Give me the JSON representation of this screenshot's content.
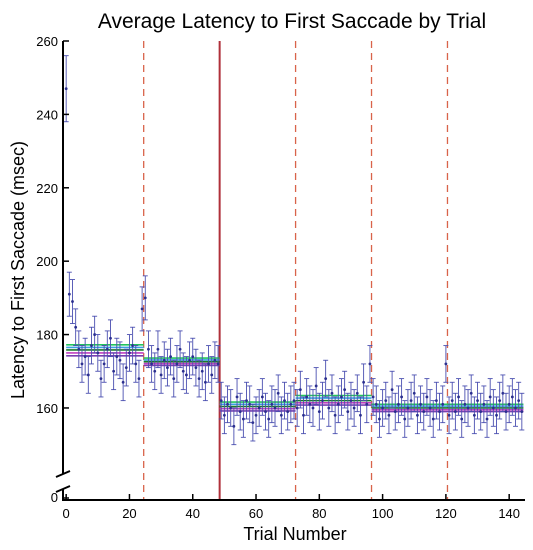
{
  "chart_data": {
    "type": "scatter",
    "title": "Average Latency to First Saccade by Trial",
    "xlabel": "Trial Number",
    "ylabel": "Latency to First Saccade (msec)",
    "xlim": [
      -1,
      145
    ],
    "ylim_main": [
      148,
      260
    ],
    "ylim_break": [
      0,
      0
    ],
    "axis_break": true,
    "grid": false,
    "x_ticks": [
      0,
      20,
      40,
      60,
      80,
      100,
      120,
      140
    ],
    "y_ticks": [
      160,
      180,
      200,
      220,
      240,
      260
    ],
    "y_ticks_below_break": [
      0
    ],
    "colors": {
      "points": "#2b2f8f",
      "errorbars": "#4a4fb0",
      "dashed_lines": "#d9634a",
      "solid_line": "#b0303a",
      "fit_lines": [
        "#22c55e",
        "#3aa0e0",
        "#1a7a2a",
        "#c040c0",
        "#7a3fb0"
      ]
    },
    "vertical_lines": [
      {
        "x": 24.5,
        "style": "dashed"
      },
      {
        "x": 48.5,
        "style": "solid"
      },
      {
        "x": 72.5,
        "style": "dashed"
      },
      {
        "x": 96.5,
        "style": "dashed"
      },
      {
        "x": 120.5,
        "style": "dashed"
      }
    ],
    "segment_means": [
      {
        "x_start": 0,
        "x_end": 24.5,
        "values": [
          177.2,
          176.5,
          175.8,
          175.0,
          174.2
        ]
      },
      {
        "x_start": 24.5,
        "x_end": 48.5,
        "values": [
          173.6,
          173.1,
          172.6,
          172.1,
          171.6
        ]
      },
      {
        "x_start": 48.5,
        "x_end": 72.5,
        "values": [
          161.6,
          161.0,
          160.4,
          159.8,
          159.2
        ]
      },
      {
        "x_start": 72.5,
        "x_end": 96.5,
        "values": [
          163.4,
          162.7,
          162.0,
          161.4,
          160.8
        ]
      },
      {
        "x_start": 96.5,
        "x_end": 144.5,
        "values": [
          161.0,
          160.5,
          160.0,
          159.5,
          159.0
        ]
      }
    ],
    "x": [
      0,
      1,
      2,
      3,
      4,
      5,
      6,
      7,
      8,
      9,
      10,
      11,
      12,
      13,
      14,
      15,
      16,
      17,
      18,
      19,
      20,
      21,
      22,
      23,
      24,
      25,
      26,
      27,
      28,
      29,
      30,
      31,
      32,
      33,
      34,
      35,
      36,
      37,
      38,
      39,
      40,
      41,
      42,
      43,
      44,
      45,
      46,
      47,
      48,
      49,
      50,
      51,
      52,
      53,
      54,
      55,
      56,
      57,
      58,
      59,
      60,
      61,
      62,
      63,
      64,
      65,
      66,
      67,
      68,
      69,
      70,
      71,
      72,
      73,
      74,
      75,
      76,
      77,
      78,
      79,
      80,
      81,
      82,
      83,
      84,
      85,
      86,
      87,
      88,
      89,
      90,
      91,
      92,
      93,
      94,
      95,
      96,
      97,
      98,
      99,
      100,
      101,
      102,
      103,
      104,
      105,
      106,
      107,
      108,
      109,
      110,
      111,
      112,
      113,
      114,
      115,
      116,
      117,
      118,
      119,
      120,
      121,
      122,
      123,
      124,
      125,
      126,
      127,
      128,
      129,
      130,
      131,
      132,
      133,
      134,
      135,
      136,
      137,
      138,
      139,
      140,
      141,
      142,
      143,
      144
    ],
    "y": [
      247,
      191,
      189,
      182,
      176,
      172,
      174,
      169,
      177,
      180,
      175,
      168,
      172,
      176,
      179,
      170,
      174,
      173,
      167,
      171,
      175,
      177,
      172,
      168,
      187,
      190,
      176,
      172,
      170,
      176,
      169,
      173,
      171,
      174,
      168,
      172,
      176,
      170,
      169,
      173,
      174,
      171,
      168,
      170,
      167,
      172,
      169,
      173,
      172,
      162,
      158,
      161,
      160,
      155,
      163,
      159,
      157,
      162,
      161,
      156,
      158,
      160,
      163,
      159,
      157,
      161,
      160,
      164,
      158,
      162,
      159,
      161,
      162,
      160,
      165,
      158,
      163,
      161,
      160,
      166,
      159,
      162,
      168,
      160,
      164,
      158,
      161,
      163,
      165,
      159,
      162,
      160,
      164,
      158,
      167,
      161,
      172,
      163,
      161,
      157,
      160,
      162,
      158,
      165,
      159,
      161,
      163,
      157,
      160,
      162,
      164,
      158,
      161,
      159,
      163,
      160,
      157,
      162,
      159,
      161,
      172,
      158,
      162,
      159,
      163,
      157,
      161,
      160,
      164,
      158,
      162,
      159,
      161,
      157,
      163,
      160,
      158,
      162,
      164,
      159,
      161,
      163,
      160,
      162,
      159
    ],
    "err": [
      9,
      6,
      6,
      5,
      5,
      5,
      5,
      5,
      5,
      5,
      5,
      5,
      5,
      5,
      5,
      5,
      5,
      5,
      5,
      5,
      5,
      5,
      5,
      5,
      6,
      6,
      5,
      5,
      5,
      5,
      5,
      5,
      5,
      5,
      5,
      5,
      5,
      5,
      5,
      5,
      5,
      5,
      5,
      5,
      5,
      5,
      5,
      5,
      5,
      5,
      5,
      5,
      5,
      5,
      5,
      5,
      5,
      5,
      5,
      5,
      5,
      5,
      5,
      5,
      5,
      5,
      5,
      5,
      5,
      5,
      5,
      5,
      5,
      5,
      5,
      5,
      5,
      5,
      5,
      5,
      5,
      5,
      5,
      5,
      5,
      5,
      5,
      5,
      5,
      5,
      5,
      5,
      5,
      5,
      5,
      5,
      5,
      5,
      5,
      5,
      5,
      5,
      5,
      5,
      5,
      5,
      5,
      5,
      5,
      5,
      5,
      5,
      5,
      5,
      5,
      5,
      5,
      5,
      5,
      5,
      5,
      5,
      5,
      5,
      5,
      5,
      5,
      5,
      5,
      5,
      5,
      5,
      5,
      5,
      5,
      5,
      5,
      5,
      5,
      5,
      5,
      5,
      5,
      5,
      5
    ]
  }
}
